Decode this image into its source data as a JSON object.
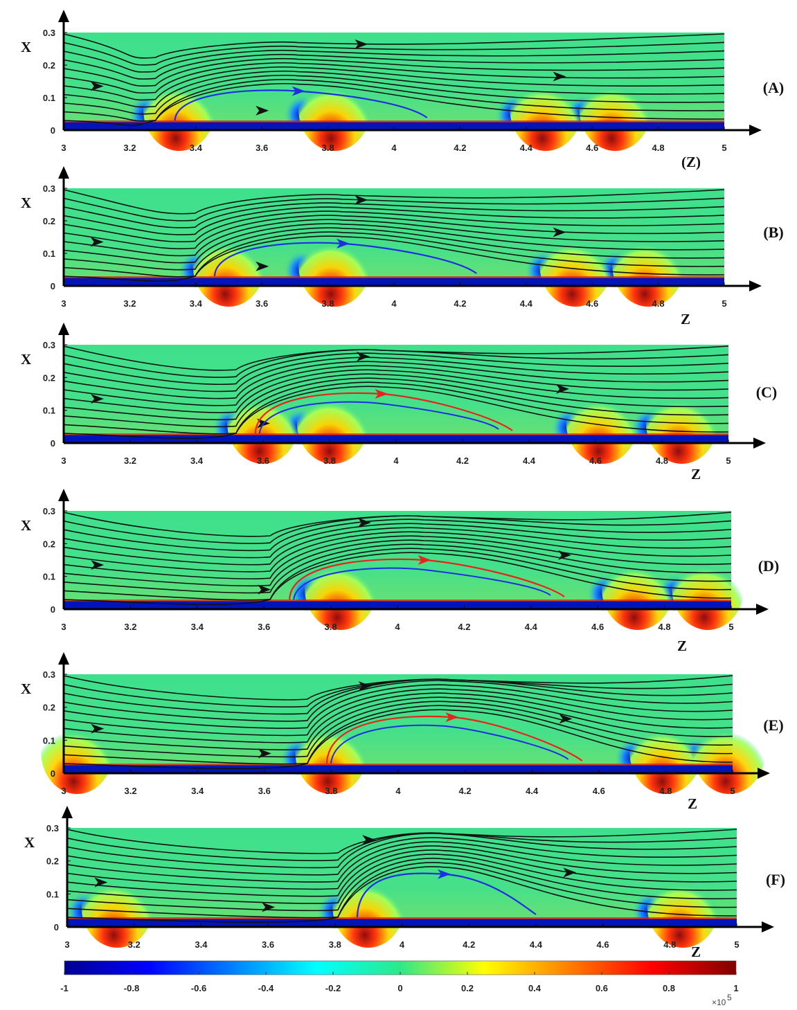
{
  "chart_data": {
    "type": "heatmap",
    "description_units": "streamlines overlaid on a contour field; x-axis Z, y-axis X",
    "panels": [
      {
        "label": "(A)",
        "xlabel": "(Z)",
        "ylabel": "X",
        "xlim": [
          3,
          5
        ],
        "ylim": [
          0,
          0.3
        ],
        "xticks": [
          "3",
          "3.2",
          "3.4",
          "3.6",
          "3.8",
          "4",
          "4.2",
          "4.4",
          "4.6",
          "4.8",
          "5"
        ],
        "yticks": [
          "0",
          "0.1",
          "0.2",
          "0.3"
        ],
        "hotspots": [
          3.35,
          3.82,
          4.46,
          4.67
        ],
        "bubble": {
          "start": 3.32,
          "end": 4.1,
          "height": 0.12
        },
        "highlight": "blue"
      },
      {
        "label": "(B)",
        "xlabel": "Z",
        "ylabel": "X",
        "xlim": [
          3,
          5
        ],
        "ylim": [
          0,
          0.3
        ],
        "xticks": [
          "3",
          "3.2",
          "3.4",
          "3.6",
          "3.8",
          "4",
          "4.2",
          "4.4",
          "4.6",
          "4.8",
          "5"
        ],
        "yticks": [
          "0",
          "0.1",
          "0.2",
          "0.3"
        ],
        "hotspots": [
          3.5,
          3.82,
          4.55,
          4.77
        ],
        "bubble": {
          "start": 3.44,
          "end": 4.25,
          "height": 0.13
        },
        "highlight": "blue"
      },
      {
        "label": "(C)",
        "xlabel": "Z",
        "ylabel": "X",
        "xlim": [
          3,
          5
        ],
        "ylim": [
          0,
          0.3
        ],
        "xticks": [
          "3",
          "3.2",
          "3.4",
          "3.6",
          "3.8",
          "4",
          "4.2",
          "4.4",
          "4.6",
          "4.8",
          "5"
        ],
        "yticks": [
          "0",
          "0.1",
          "0.2",
          "0.3"
        ],
        "hotspots": [
          3.6,
          3.81,
          4.62,
          4.86
        ],
        "bubble": {
          "start": 3.56,
          "end": 4.35,
          "height": 0.15
        },
        "highlight": "red"
      },
      {
        "label": "(D)",
        "xlabel": "Z",
        "ylabel": "X",
        "xlim": [
          3,
          5
        ],
        "ylim": [
          0,
          0.3
        ],
        "xticks": [
          "3",
          "3.2",
          "3.4",
          "3.6",
          "3.8",
          "4",
          "4.2",
          "4.4",
          "4.6",
          "4.8",
          "5"
        ],
        "yticks": [
          "0",
          "0.1",
          "0.2",
          "0.3"
        ],
        "hotspots": [
          3.83,
          4.72,
          4.93
        ],
        "bubble": {
          "start": 3.66,
          "end": 4.5,
          "height": 0.15
        },
        "highlight": "red"
      },
      {
        "label": "(E)",
        "xlabel": "Z",
        "ylabel": "X",
        "xlim": [
          3,
          5
        ],
        "ylim": [
          0,
          0.3
        ],
        "xticks": [
          "3",
          "3.2",
          "3.4",
          "3.6",
          "3.8",
          "4",
          "4.2",
          "4.4",
          "4.6",
          "4.8",
          "5"
        ],
        "yticks": [
          "0",
          "0.1",
          "0.2",
          "0.3"
        ],
        "hotspots": [
          3.04,
          3.8,
          4.8,
          4.99
        ],
        "bubble": {
          "start": 3.77,
          "end": 4.55,
          "height": 0.17
        },
        "highlight": "red"
      },
      {
        "label": "(F)",
        "xlabel": "Z",
        "ylabel": "X",
        "xlim": [
          3,
          5
        ],
        "ylim": [
          0,
          0.3
        ],
        "xticks": [
          "3",
          "3.2",
          "3.4",
          "3.6",
          "3.8",
          "4",
          "4.2",
          "4.4",
          "4.6",
          "4.8",
          "5"
        ],
        "yticks": [
          "0",
          "0.1",
          "0.2",
          "0.3"
        ],
        "hotspots": [
          3.15,
          3.9,
          4.84
        ],
        "bubble": {
          "start": 3.85,
          "end": 4.4,
          "height": 0.16
        },
        "highlight": "blue"
      }
    ],
    "colorbar": {
      "range": [
        -1,
        1
      ],
      "ticks": [
        "-1",
        "-0.8",
        "-0.6",
        "-0.4",
        "-0.2",
        "0",
        "0.2",
        "0.4",
        "0.6",
        "0.8",
        "1"
      ],
      "exponent": "×10",
      "exponent_power": "5",
      "colormap": "jet"
    },
    "colors": {
      "streamline": "#111111",
      "highlight_blue": "#1f2fe0",
      "highlight_red": "#e8231a",
      "highlight_green": "#1aa031"
    }
  }
}
